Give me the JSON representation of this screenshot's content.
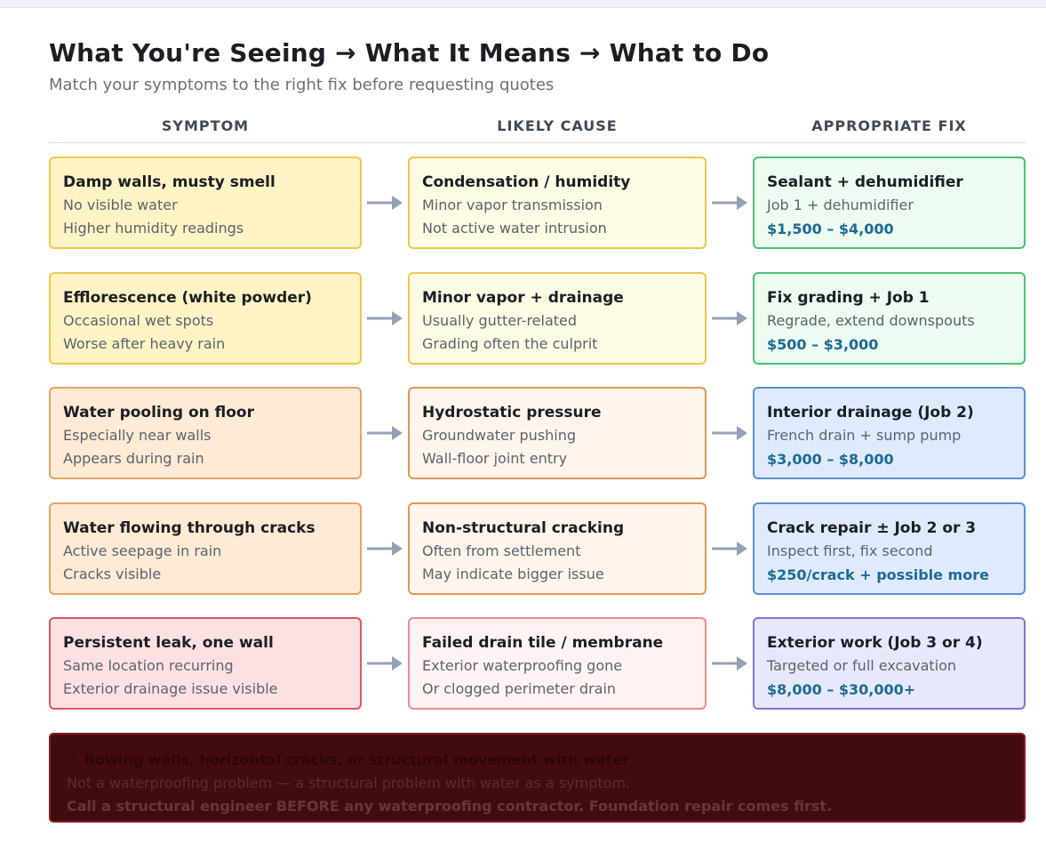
{
  "title": "What You're Seeing → What It Means → What to Do",
  "subtitle": "Match your symptoms to the right fix before requesting quotes",
  "columns": {
    "symptom": "SYMPTOM",
    "cause": "LIKELY CAUSE",
    "fix": "APPROPRIATE FIX"
  },
  "rows": [
    {
      "symptom": {
        "title": "Damp walls, musty smell",
        "lines": [
          "No visible water",
          "Higher humidity readings"
        ]
      },
      "cause": {
        "title": "Condensation / humidity",
        "lines": [
          "Minor vapor transmission",
          "Not active water intrusion"
        ]
      },
      "fix": {
        "title": "Sealant + dehumidifier",
        "line": "Job 1 + dehumidifier",
        "price": "$1,500 – $4,000"
      }
    },
    {
      "symptom": {
        "title": "Efflorescence (white powder)",
        "lines": [
          "Occasional wet spots",
          "Worse after heavy rain"
        ]
      },
      "cause": {
        "title": "Minor vapor + drainage",
        "lines": [
          "Usually gutter-related",
          "Grading often the culprit"
        ]
      },
      "fix": {
        "title": "Fix grading + Job 1",
        "line": "Regrade, extend downspouts",
        "price": "$500 – $3,000"
      }
    },
    {
      "symptom": {
        "title": "Water pooling on floor",
        "lines": [
          "Especially near walls",
          "Appears during rain"
        ]
      },
      "cause": {
        "title": "Hydrostatic pressure",
        "lines": [
          "Groundwater pushing",
          "Wall-floor joint entry"
        ]
      },
      "fix": {
        "title": "Interior drainage (Job 2)",
        "line": "French drain + sump pump",
        "price": "$3,000 – $8,000"
      }
    },
    {
      "symptom": {
        "title": "Water flowing through cracks",
        "lines": [
          "Active seepage in rain",
          "Cracks visible"
        ]
      },
      "cause": {
        "title": "Non-structural cracking",
        "lines": [
          "Often from settlement",
          "May indicate bigger issue"
        ]
      },
      "fix": {
        "title": "Crack repair ± Job 2 or 3",
        "line": "Inspect first, fix second",
        "price": "$250/crack + possible more"
      }
    },
    {
      "symptom": {
        "title": "Persistent leak, one wall",
        "lines": [
          "Same location recurring",
          "Exterior drainage issue visible"
        ]
      },
      "cause": {
        "title": "Failed drain tile / membrane",
        "lines": [
          "Exterior waterproofing gone",
          "Or clogged perimeter drain"
        ]
      },
      "fix": {
        "title": "Exterior work (Job 3 or 4)",
        "line": "Targeted or full excavation",
        "price": "$8,000 – $30,000+"
      }
    }
  ],
  "warning": {
    "title": "⚠ Bowing walls, horizontal cracks, or structural movement with water",
    "line": "Not a waterproofing problem — a structural problem with water as a symptom.",
    "action": "Call a structural engineer BEFORE any waterproofing contractor. Foundation repair comes first."
  }
}
